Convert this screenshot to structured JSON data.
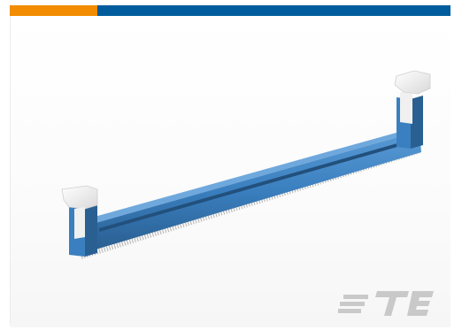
{
  "brand": {
    "logo_text": "TE",
    "colors": {
      "bar_accent": "#F28C00",
      "bar_primary": "#005C9C",
      "connector_body": "#3A7FBF",
      "connector_dark": "#2A5F92",
      "latch": "#F2F2F2",
      "logo_gray": "#C9C9C9"
    }
  },
  "image": {
    "subject_icon": "dimm-socket-connector",
    "logo_icon": "te-logo-icon"
  }
}
